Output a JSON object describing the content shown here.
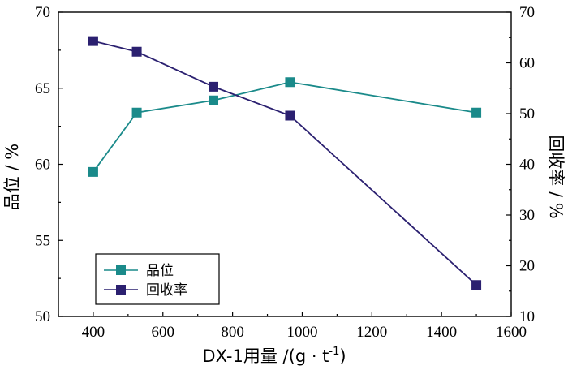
{
  "chart_data": {
    "type": "line",
    "xlabel": "DX-1用量 /(g · t",
    "xlabel_sup": "-1",
    "xlabel_end": ")",
    "ylabel": "品位 / %",
    "ylabel_right": "回收率 / %",
    "xlim": [
      300,
      1600
    ],
    "xticks": [
      400,
      600,
      800,
      1000,
      1200,
      1400,
      1600
    ],
    "ylim": [
      50,
      70
    ],
    "yticks": [
      50,
      55,
      60,
      65,
      70
    ],
    "ylim_right": [
      10,
      70
    ],
    "yticks_right": [
      10,
      20,
      30,
      40,
      50,
      60,
      70
    ],
    "legend_position": "bottom-left",
    "grid": false,
    "series": [
      {
        "name": "品位",
        "axis": "left",
        "color": "#1a8a8a",
        "marker": "square",
        "x": [
          400,
          525,
          745,
          965,
          1500
        ],
        "values": [
          59.5,
          63.4,
          64.2,
          65.4,
          63.4
        ]
      },
      {
        "name": "回收率",
        "axis": "right",
        "color": "#2b2070",
        "marker": "square",
        "x": [
          400,
          525,
          745,
          965,
          1500
        ],
        "values": [
          64.3,
          62.2,
          55.3,
          49.6,
          16.2
        ]
      }
    ]
  }
}
